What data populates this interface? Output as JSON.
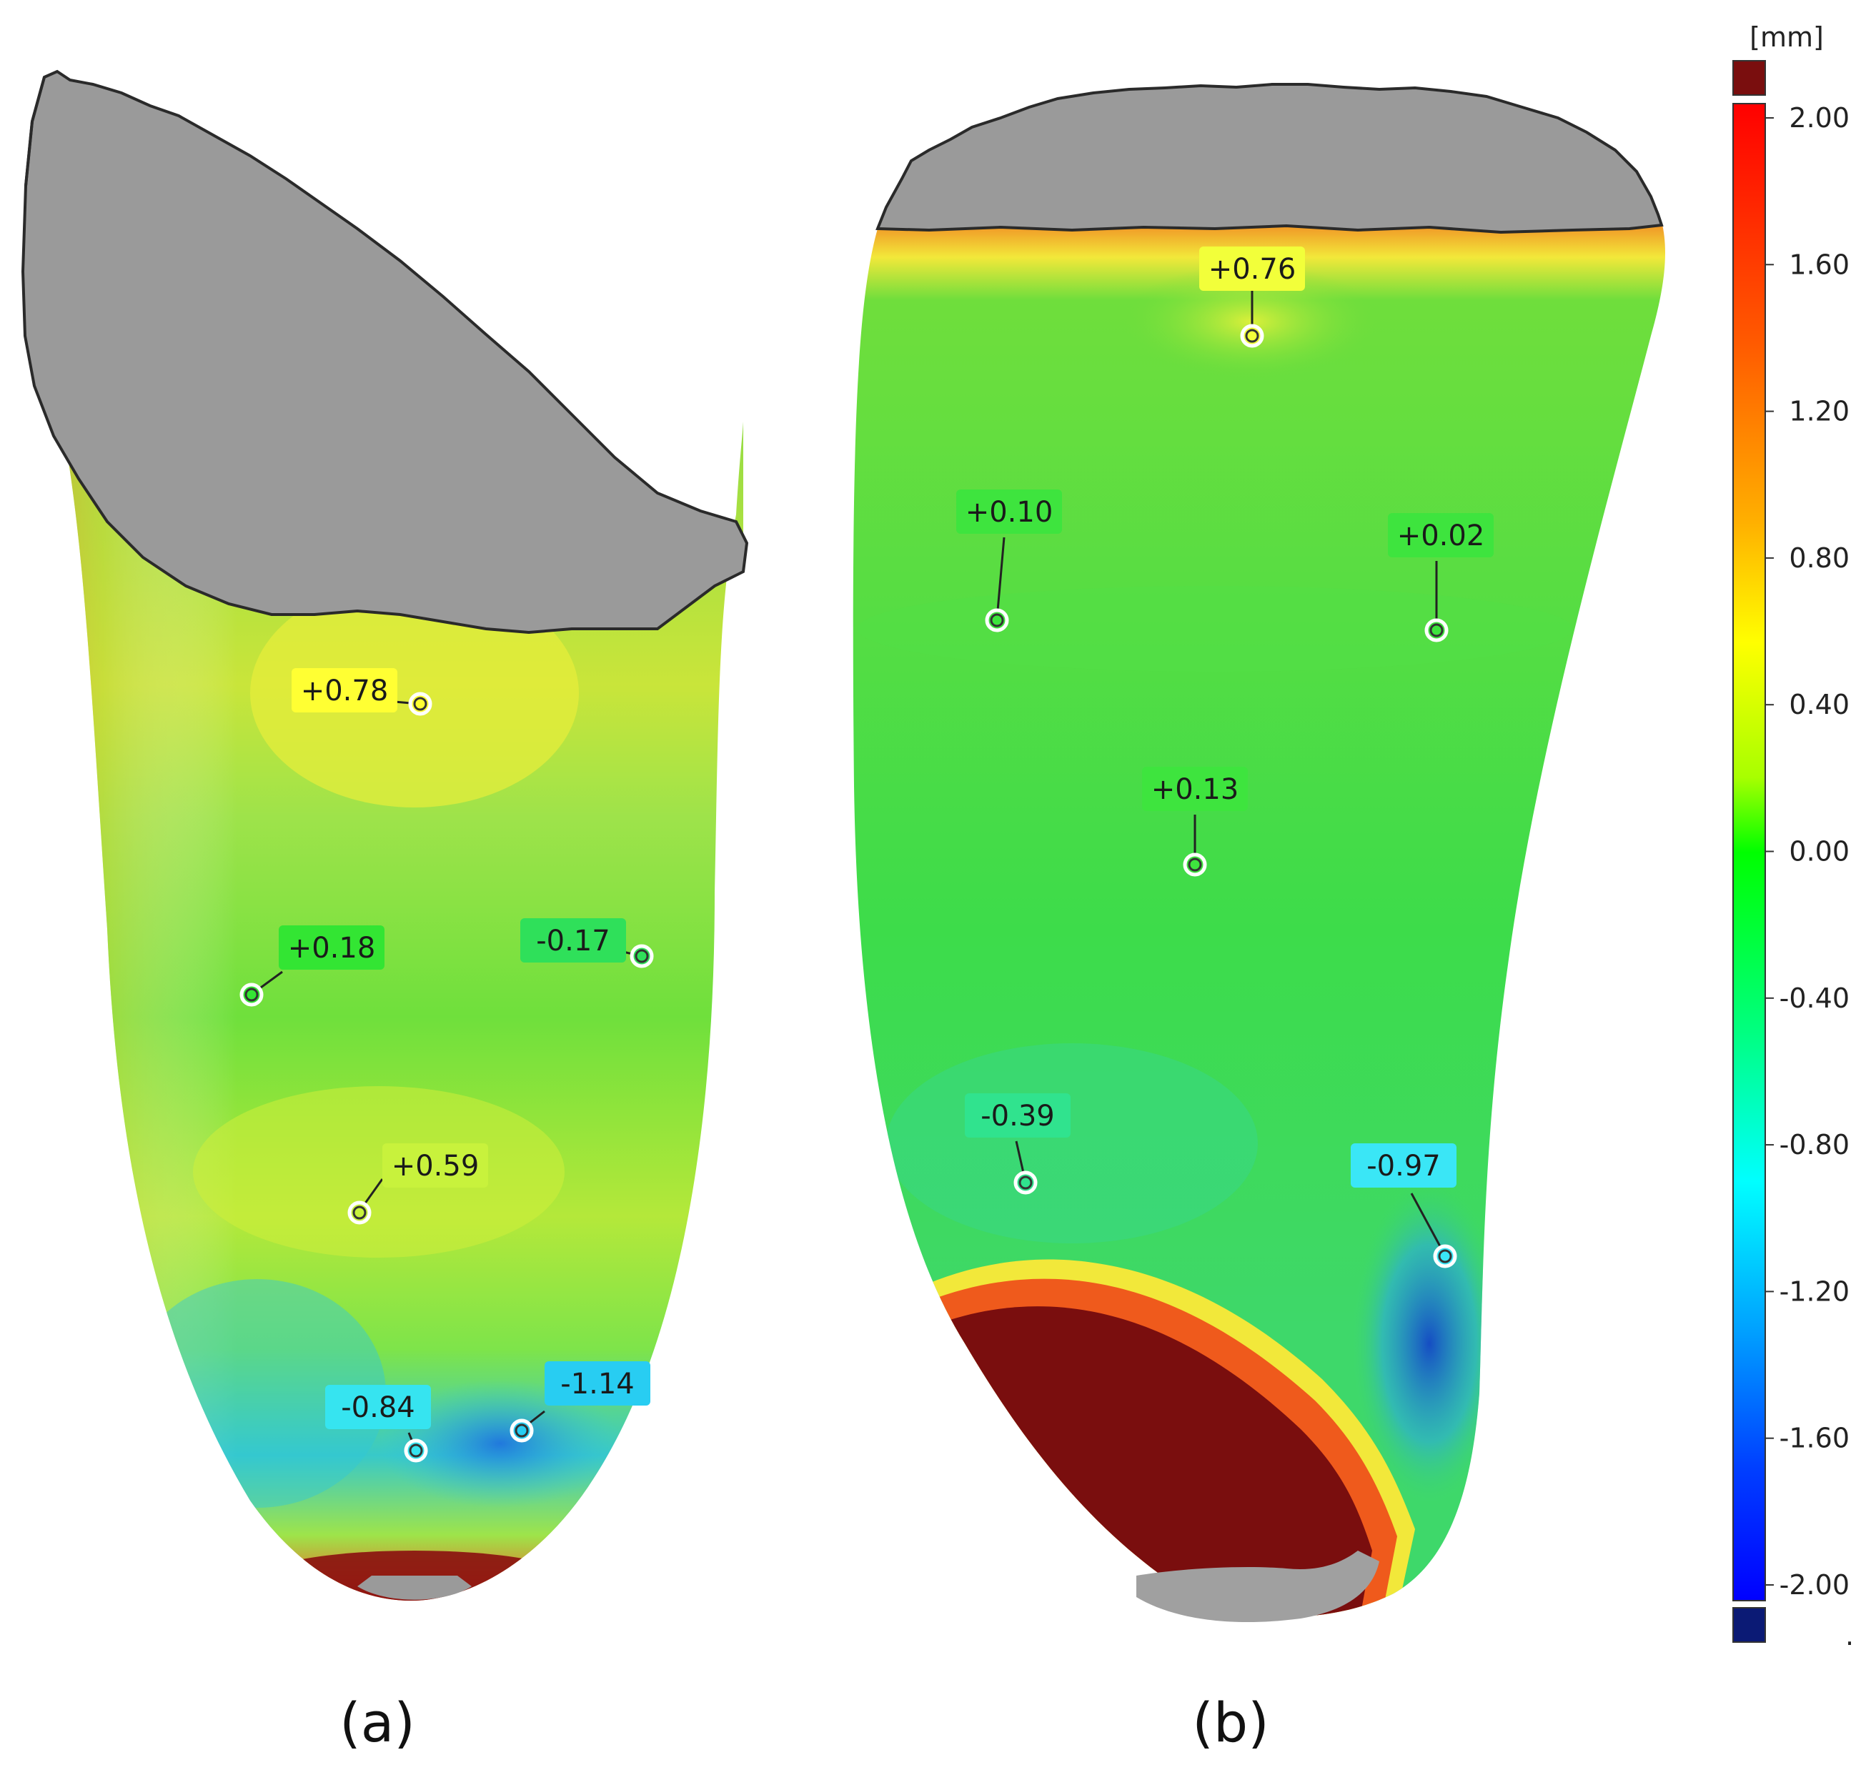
{
  "legend": {
    "unit": "[mm]",
    "ticks": [
      "2.00",
      "1.60",
      "1.20",
      "0.80",
      "0.40",
      "0.00",
      "-0.40",
      "-0.80",
      "-1.20",
      "-1.60",
      "-2.00"
    ],
    "overflow_color": "#7a0e0e",
    "underflow_color": "#0b1a75",
    "trailing_mark": "."
  },
  "panels": [
    {
      "label": "(a)",
      "points": [
        {
          "text": "+0.78",
          "color": "#ffff33"
        },
        {
          "text": "+0.18",
          "color": "#33e533"
        },
        {
          "text": "-0.17",
          "color": "#2fe05a"
        },
        {
          "text": "+0.59",
          "color": "#c8f23c"
        },
        {
          "text": "-0.84",
          "color": "#36e4f0"
        },
        {
          "text": "-1.14",
          "color": "#28cdf2"
        }
      ]
    },
    {
      "label": "(b)",
      "points": [
        {
          "text": "+0.76",
          "color": "#f2ff3a"
        },
        {
          "text": "+0.10",
          "color": "#3ee43e"
        },
        {
          "text": "+0.02",
          "color": "#3ee43e"
        },
        {
          "text": "+0.13",
          "color": "#3ee43e"
        },
        {
          "text": "-0.39",
          "color": "#30e38e"
        },
        {
          "text": "-0.97",
          "color": "#3ae6f6"
        }
      ]
    }
  ]
}
